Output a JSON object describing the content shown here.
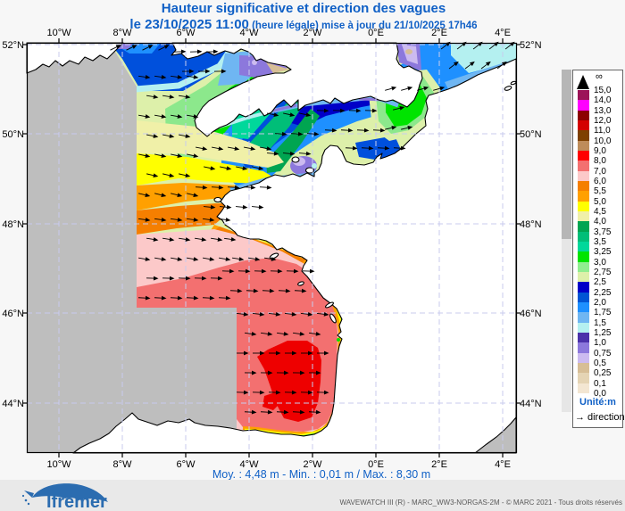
{
  "title": {
    "text": "Hauteur significative et direction des vagues",
    "date_text": "le 23/10/2025 11:00",
    "update_text": " (heure légale) mise à jour du 21/10/2025 17h46"
  },
  "axes": {
    "lon": [
      "10°W",
      "8°W",
      "6°W",
      "4°W",
      "2°W",
      "0°E",
      "2°E",
      "4°E"
    ],
    "lat": [
      "52°N",
      "50°N",
      "48°N",
      "46°N",
      "44°N"
    ]
  },
  "legend": {
    "infinity": "∞",
    "unit": "Unité:m",
    "direction": "direction",
    "boundaries": [
      "15,0",
      "14,0",
      "13,0",
      "12,0",
      "11,0",
      "10,0",
      "9,0",
      "8,0",
      "7,0",
      "6,0",
      "5,5",
      "5,0",
      "4,5",
      "4,0",
      "3,75",
      "3,5",
      "3,25",
      "3,0",
      "2,75",
      "2,5",
      "2,25",
      "2,0",
      "1,75",
      "1,5",
      "1,25",
      "1,0",
      "0,75",
      "0,5",
      "0,25",
      "0,1",
      "0,0"
    ],
    "colors": [
      "#9C1458",
      "#FF00FF",
      "#8C0000",
      "#D40000",
      "#7E4000",
      "#BE8C5A",
      "#FF0000",
      "#F37070",
      "#FCC9C9",
      "#F57F00",
      "#FFA000",
      "#FFFF00",
      "#F0F0A8",
      "#00A551",
      "#00BE78",
      "#00D89B",
      "#00E400",
      "#90EE90",
      "#DDF0AA",
      "#0000C8",
      "#0055D4",
      "#1E90FF",
      "#6FB6F2",
      "#B4F0F0",
      "#4B32AA",
      "#8C78DC",
      "#CCBBF0",
      "#D7BE96",
      "#E5D4B4",
      "#F3E6D2"
    ]
  },
  "stats": {
    "moy": "4,48 m",
    "min": "0,01 m",
    "max": "8,30 m",
    "text": "Moy. : 4,48 m   -   Min. : 0,01 m / Max. : 8,30 m"
  },
  "footer": {
    "logo": "Ifremer",
    "credit": "WAVEWATCH III (R) - MARC_WW3-NORGAS-2M - © MARC 2021 - Tous droits réservés"
  }
}
